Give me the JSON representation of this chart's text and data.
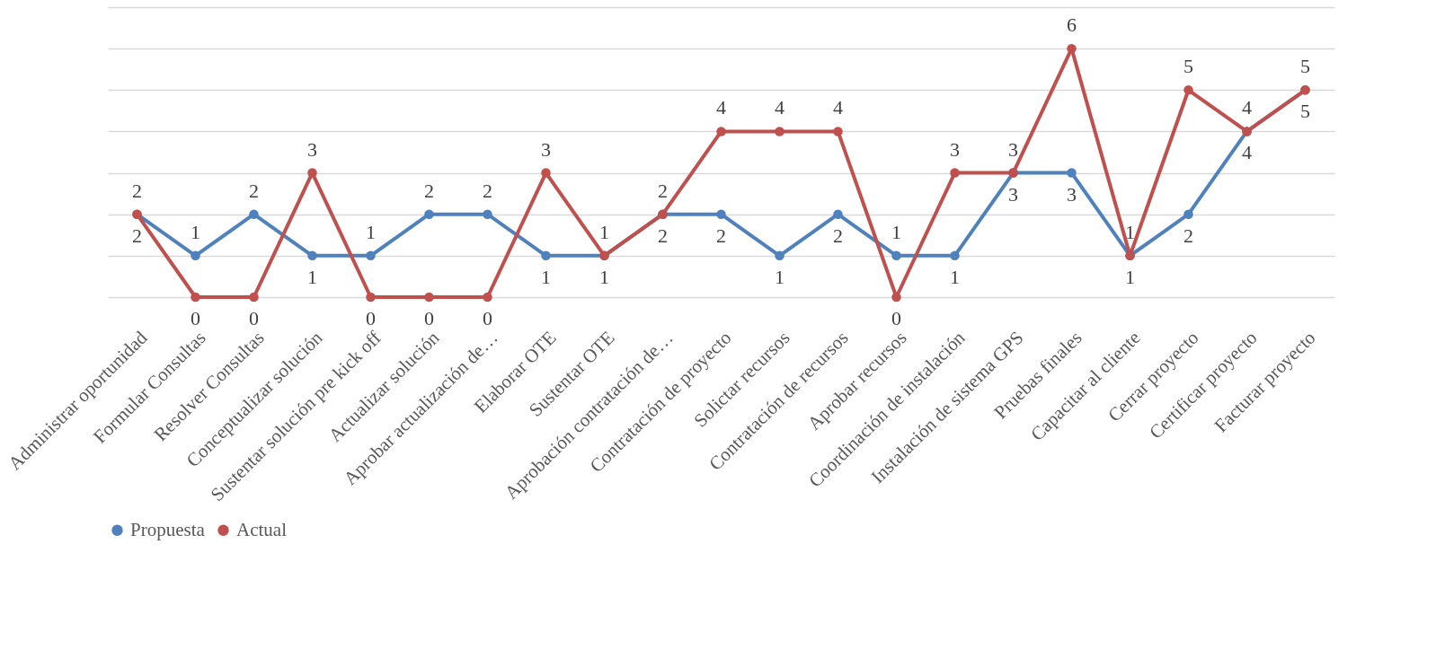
{
  "chart_data": {
    "type": "line",
    "categories": [
      "Administrar oportunidad",
      "Formular Consultas",
      "Resolver Consultas",
      "Conceptualizar  solución",
      "Sustentar solución pre kick off",
      "Actualizar solución",
      "Aprobar actualización de…",
      "Elaborar OTE",
      "Sustentar OTE",
      "Aprobación contratación de…",
      "Contratación de proyecto",
      "Solictar recursos",
      "Contratación de recursos",
      "Aprobar recursos",
      "Coordinación de instalación",
      "Instalación  de sistema GPS",
      "Pruebas finales",
      "Capacitar al cliente",
      "Cerrar proyecto",
      "Certificar proyecto",
      "Facturar proyecto"
    ],
    "series": [
      {
        "name": "Propuesta",
        "color": "#4f81bd",
        "values": [
          2,
          1,
          2,
          1,
          1,
          2,
          2,
          1,
          1,
          2,
          2,
          1,
          2,
          1,
          1,
          3,
          3,
          1,
          2,
          4,
          5
        ]
      },
      {
        "name": "Actual",
        "color": "#c0504d",
        "values": [
          2,
          0,
          0,
          3,
          0,
          0,
          0,
          3,
          1,
          2,
          4,
          4,
          4,
          0,
          3,
          3,
          6,
          1,
          5,
          4,
          5
        ]
      }
    ],
    "ylim": [
      0,
      7
    ],
    "yticks": [
      0,
      1,
      2,
      3,
      4,
      5,
      6,
      7
    ],
    "tick_labels": "x",
    "grid": "y",
    "legend": "bottom",
    "marker": "circle",
    "line_style": "solid",
    "data_labels": true
  }
}
